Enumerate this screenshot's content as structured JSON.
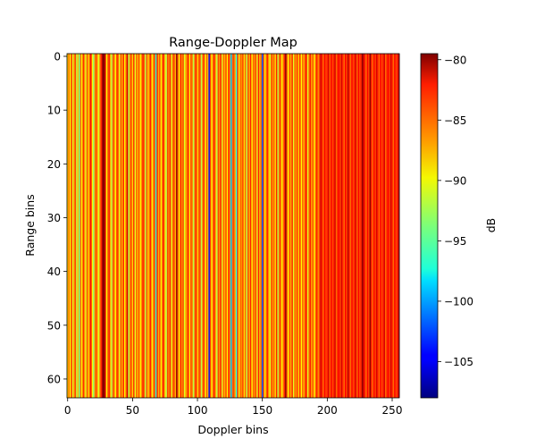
{
  "chart_data": {
    "type": "heatmap",
    "title": "Range-Doppler Map",
    "xlabel": "Doppler bins",
    "ylabel": "Range bins",
    "colorbar_label": "dB",
    "colormap": "jet",
    "n_doppler_bins": 256,
    "n_range_bins": 64,
    "xlim": [
      -0.5,
      255.5
    ],
    "ylim": [
      63.5,
      -0.5
    ],
    "clim": [
      -108,
      -79.5
    ],
    "x_ticks": [
      0,
      50,
      100,
      150,
      200,
      250
    ],
    "x_tick_labels": [
      "0",
      "50",
      "100",
      "150",
      "200",
      "250"
    ],
    "y_ticks": [
      0,
      10,
      20,
      30,
      40,
      50,
      60
    ],
    "y_tick_labels": [
      "0",
      "10",
      "20",
      "30",
      "40",
      "50",
      "60"
    ],
    "colorbar_ticks": [
      -80,
      -85,
      -90,
      -95,
      -100,
      -105
    ],
    "colorbar_tick_labels": [
      "−80",
      "−85",
      "−90",
      "−95",
      "−100",
      "−105"
    ],
    "note_on_values": "Values are constant along range (vertical stripes); column_values gives dB per Doppler bin, estimated from colors.",
    "column_values": [
      -89,
      -86,
      -90,
      -84,
      -91,
      -87,
      -85,
      -92,
      -88,
      -94,
      -86,
      -90,
      -84,
      -87,
      -91,
      -85,
      -89,
      -86,
      -83,
      -90,
      -93,
      -87,
      -85,
      -88,
      -91,
      -86,
      -84,
      -80,
      -79.5,
      -82,
      -90,
      -86,
      -84,
      -88,
      -92,
      -85,
      -87,
      -90,
      -84,
      -86,
      -91,
      -85,
      -88,
      -84,
      -90,
      -86,
      -82,
      -92,
      -87,
      -85,
      -89,
      -84,
      -91,
      -86,
      -88,
      -85,
      -90,
      -87,
      -84,
      -86,
      -92,
      -85,
      -89,
      -86,
      -84,
      -90,
      -87,
      -85,
      -96,
      -84,
      -88,
      -85,
      -90,
      -86,
      -84,
      -89,
      -92,
      -85,
      -87,
      -84,
      -91,
      -86,
      -85,
      -88,
      -80,
      -86,
      -90,
      -84,
      -87,
      -85,
      -91,
      -88,
      -86,
      -84,
      -90,
      -85,
      -87,
      -92,
      -86,
      -84,
      -89,
      -86,
      -85,
      -92,
      -87,
      -84,
      -90,
      -86,
      -88,
      -104,
      -85,
      -90,
      -86,
      -84,
      -88,
      -92,
      -85,
      -87,
      -84,
      -91,
      -86,
      -88,
      -85,
      -90,
      -84,
      -87,
      -99,
      -86,
      -85,
      -88,
      -96,
      -84,
      -90,
      -86,
      -87,
      -85,
      -89,
      -86,
      -92,
      -85,
      -88,
      -84,
      -90,
      -86,
      -87,
      -85,
      -91,
      -84,
      -88,
      -86,
      -102,
      -85,
      -90,
      -86,
      -84,
      -88,
      -91,
      -85,
      -87,
      -86,
      -89,
      -84,
      -92,
      -86,
      -85,
      -90,
      -87,
      -84,
      -80,
      -86,
      -90,
      -85,
      -88,
      -84,
      -91,
      -86,
      -87,
      -85,
      -89,
      -84,
      -90,
      -86,
      -88,
      -85,
      -84,
      -91,
      -86,
      -84,
      -88,
      -85,
      -90,
      -86,
      -84,
      -87,
      -85,
      -82,
      -84,
      -86,
      -83,
      -85,
      -84,
      -82,
      -86,
      -83,
      -85,
      -84,
      -82,
      -86,
      -84,
      -83,
      -85,
      -82,
      -84,
      -86,
      -83,
      -85,
      -81,
      -84,
      -86,
      -83,
      -85,
      -84,
      -82,
      -86,
      -83,
      -85,
      -84,
      -80,
      -82,
      -84,
      -86,
      -83,
      -85,
      -80,
      -84,
      -86,
      -83,
      -85,
      -82,
      -84,
      -86,
      -83,
      -85,
      -84,
      -82,
      -86,
      -84,
      -83,
      -85,
      -82,
      -84,
      -86,
      -83,
      -85,
      -84,
      -82
    ]
  }
}
